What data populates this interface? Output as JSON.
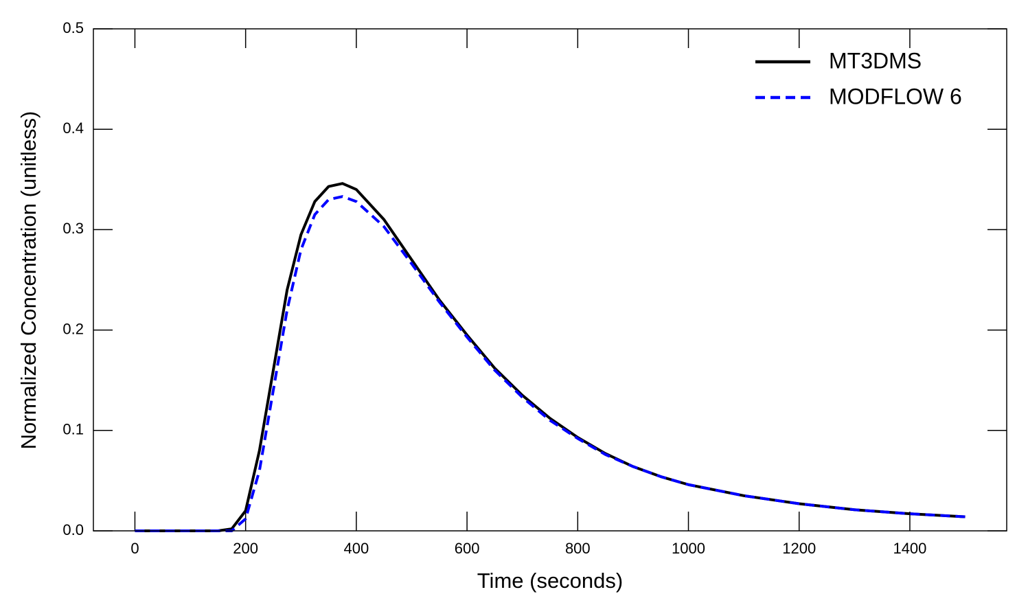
{
  "chart_data": {
    "type": "line",
    "x_label": "Time (seconds)",
    "y_label": "Normalized Concentration (unitless)",
    "x": [
      0,
      50,
      100,
      150,
      175,
      200,
      225,
      250,
      275,
      300,
      325,
      350,
      375,
      400,
      450,
      500,
      550,
      600,
      650,
      700,
      750,
      800,
      850,
      900,
      950,
      1000,
      1100,
      1200,
      1300,
      1400,
      1500
    ],
    "series": [
      {
        "name": "MT3DMS",
        "color": "#000000",
        "linestyle": "solid",
        "values": [
          0,
          0,
          0,
          0,
          0.002,
          0.02,
          0.08,
          0.16,
          0.24,
          0.295,
          0.328,
          0.343,
          0.346,
          0.34,
          0.31,
          0.27,
          0.23,
          0.195,
          0.162,
          0.135,
          0.112,
          0.093,
          0.077,
          0.064,
          0.054,
          0.046,
          0.035,
          0.027,
          0.021,
          0.017,
          0.014
        ]
      },
      {
        "name": "MODFLOW 6",
        "color": "#0000ff",
        "linestyle": "dashed",
        "values": [
          0,
          0,
          0,
          0,
          0,
          0.012,
          0.06,
          0.14,
          0.22,
          0.28,
          0.315,
          0.33,
          0.333,
          0.328,
          0.303,
          0.266,
          0.228,
          0.193,
          0.16,
          0.133,
          0.11,
          0.092,
          0.076,
          0.064,
          0.054,
          0.046,
          0.035,
          0.027,
          0.021,
          0.017,
          0.014
        ]
      }
    ],
    "xlim": [
      -75,
      1575
    ],
    "xticks": [
      0,
      200,
      400,
      600,
      800,
      1000,
      1200,
      1400
    ],
    "ylim": [
      0,
      0.5
    ],
    "yticks": [
      {
        "value": 0,
        "label": "0.0"
      },
      0.1,
      0.2,
      0.3,
      0.4,
      0.5
    ],
    "grid": false,
    "legend": "upper right"
  }
}
